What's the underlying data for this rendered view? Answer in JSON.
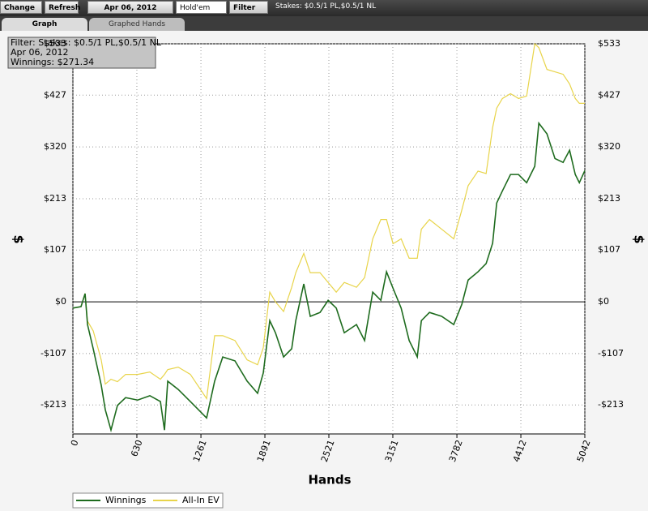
{
  "toolbar": {
    "change": "Change",
    "refresh": "Refresh",
    "date": "Apr 06, 2012",
    "game": "Hold'em",
    "filter": "Filter",
    "stakes": "Stakes: $0.5/1 PL,$0.5/1 NL"
  },
  "tabs": [
    "Graph",
    "Graphed Hands"
  ],
  "info_box": {
    "filter": "Filter: Stakes: $0.5/1 PL,$0.5/1 NL",
    "date": "Apr 06, 2012",
    "winnings": "Winnings: $271.34"
  },
  "chart_data": {
    "type": "line",
    "x_label": "Hands",
    "y_label": "$",
    "y2_label": "$",
    "x": [
      0,
      80,
      120,
      144,
      200,
      279,
      319,
      375,
      439,
      519,
      638,
      758,
      862,
      902,
      934,
      1037,
      1157,
      1317,
      1396,
      1476,
      1596,
      1716,
      1819,
      1875,
      1939,
      1995,
      2075,
      2155,
      2195,
      2274,
      2338,
      2434,
      2514,
      2594,
      2673,
      2793,
      2873,
      2953,
      3033,
      3089,
      3153,
      3233,
      3312,
      3392,
      3432,
      3512,
      3632,
      3751,
      3831,
      3893,
      3990,
      4070,
      4134,
      4174,
      4230,
      4310,
      4389,
      4469,
      4549,
      4589,
      4669,
      4748,
      4828,
      4892,
      4948,
      4988,
      5042
    ],
    "series": [
      {
        "name": "Winnings",
        "color": "#1e6b1e",
        "values": [
          -13,
          -10,
          17,
          -47,
          -97,
          -172,
          -223,
          -265,
          -214,
          -198,
          -203,
          -194,
          -206,
          -265,
          -164,
          -181,
          -206,
          -240,
          -164,
          -114,
          -122,
          -164,
          -189,
          -147,
          -39,
          -64,
          -114,
          -97,
          -39,
          37,
          -30,
          -22,
          3,
          -13,
          -64,
          -47,
          -80,
          20,
          3,
          62,
          28,
          -13,
          -80,
          -114,
          -39,
          -22,
          -30,
          -47,
          -5,
          45,
          62,
          79,
          121,
          204,
          229,
          263,
          263,
          246,
          280,
          369,
          347,
          296,
          288,
          313,
          263,
          246,
          271
        ]
      },
      {
        "name": "All-In EV",
        "color": "#e8d44a",
        "values": [
          -13,
          -10,
          17,
          -40,
          -60,
          -120,
          -170,
          -160,
          -165,
          -150,
          -150,
          -145,
          -160,
          -150,
          -140,
          -135,
          -150,
          -200,
          -70,
          -70,
          -80,
          -120,
          -130,
          -95,
          20,
          0,
          -20,
          30,
          60,
          100,
          60,
          60,
          40,
          20,
          40,
          30,
          50,
          130,
          170,
          170,
          120,
          130,
          90,
          90,
          150,
          170,
          150,
          130,
          190,
          240,
          270,
          265,
          360,
          400,
          420,
          430,
          420,
          425,
          533,
          525,
          480,
          475,
          470,
          450,
          420,
          410,
          410
        ]
      }
    ],
    "xlim": [
      0,
      5042
    ],
    "xticks": [
      0,
      630,
      1261,
      1891,
      2521,
      3151,
      3782,
      4412,
      5042
    ],
    "ylim": [
      -273,
      533
    ],
    "yticks": [
      {
        "value": -213,
        "label": "-$213"
      },
      {
        "value": -107,
        "label": "-$107"
      },
      {
        "value": 0,
        "label": "$0"
      },
      {
        "value": 107,
        "label": "$107"
      },
      {
        "value": 213,
        "label": "$213"
      },
      {
        "value": 320,
        "label": "$320"
      },
      {
        "value": 427,
        "label": "$427"
      },
      {
        "value": 533,
        "label": "$533"
      }
    ],
    "grid": true
  }
}
